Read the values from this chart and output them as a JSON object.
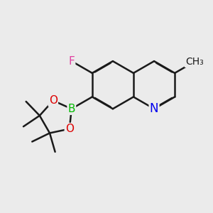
{
  "background_color": "#ebebeb",
  "bond_color": "#1a1a1a",
  "bond_width": 1.8,
  "atom_colors": {
    "F": "#e040a0",
    "B": "#00bb00",
    "O": "#dd0000",
    "N": "#0000ee",
    "C": "#1a1a1a"
  },
  "font_size": 11,
  "figsize": [
    3.0,
    3.0
  ],
  "dpi": 100
}
